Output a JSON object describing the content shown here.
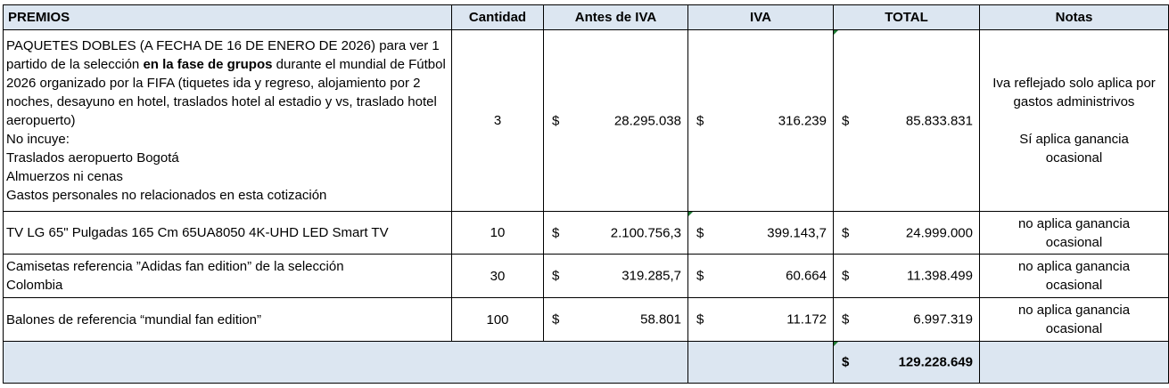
{
  "headers": {
    "premios": "PREMIOS",
    "cantidad": "Cantidad",
    "antes_iva": "Antes de IVA",
    "iva": "IVA",
    "total": "TOTAL",
    "notas": "Notas"
  },
  "currency_symbol": "$",
  "rows": [
    {
      "desc_a": "PAQUETES DOBLES (A FECHA DE 16 DE ENERO DE 2026) para ver 1 partido de la selección ",
      "desc_bold": "en la fase de grupos",
      "desc_b": " durante el mundial de Fútbol 2026 organizado por la FIFA  (tiquetes ida y regreso, alojamiento por 2 noches, desayuno en hotel, traslados hotel al estadio y vs, traslado hotel aeropuerto)",
      "excl_title": "No incuye:",
      "excl_1": "Traslados aeropuerto Bogotá",
      "excl_2": "Almuerzos ni cenas",
      "excl_3": "Gastos personales no relacionados en esta cotización",
      "cantidad": "3",
      "antes_iva": "28.295.038",
      "iva": "316.239",
      "total": "85.833.831",
      "note_1": "Iva reflejado solo aplica por gastos administrivos",
      "note_2": "Sí aplica ganancia ocasional"
    },
    {
      "desc": "TV LG 65\" Pulgadas 165 Cm 65UA8050 4K-UHD LED Smart TV",
      "cantidad": "10",
      "antes_iva": "2.100.756,3",
      "iva": "399.143,7",
      "total": "24.999.000",
      "note": "no aplica ganancia ocasional"
    },
    {
      "desc": "Camisetas referencia ”Adidas fan edition” de la selección Colombia",
      "cantidad": "30",
      "antes_iva": "319.285,7",
      "iva": "60.664",
      "total": "11.398.499",
      "note": "no aplica ganancia ocasional"
    },
    {
      "desc": "Balones de referencia “mundial fan edition”",
      "cantidad": "100",
      "antes_iva": "58.801",
      "iva": "11.172",
      "total": "6.997.319",
      "note": "no aplica ganancia ocasional"
    }
  ],
  "grand_total": "129.228.649",
  "colors": {
    "header_fill": "#dce6f1",
    "total_fill": "#dce6f1",
    "comment_marker": "#1e7b34"
  }
}
